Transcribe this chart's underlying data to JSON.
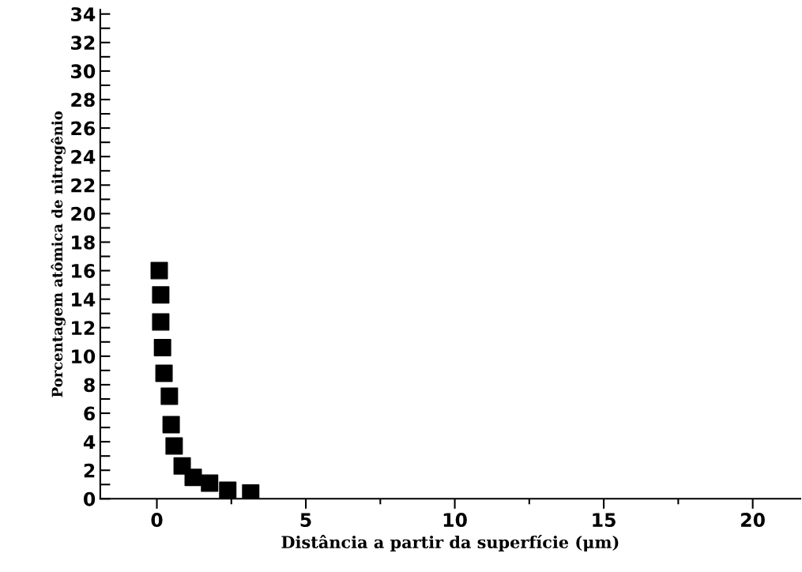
{
  "chart_data": {
    "type": "scatter",
    "xlabel": "Distância a partir da superfície (μm)",
    "ylabel": "Porcentagem atômica de nitrogênio",
    "x": [
      0.08,
      0.13,
      0.13,
      0.19,
      0.24,
      0.42,
      0.48,
      0.58,
      0.85,
      1.22,
      1.77,
      2.38,
      3.15
    ],
    "series": [
      {
        "color": "#000000",
        "values": [
          16.0,
          14.3,
          12.4,
          10.6,
          8.8,
          7.2,
          5.2,
          3.7,
          2.3,
          1.5,
          1.1,
          0.6,
          0.4
        ]
      }
    ],
    "marker": "square",
    "xlim": [
      -1.9,
      21.6
    ],
    "ylim": [
      0,
      34.3
    ],
    "xticks": [
      0,
      5,
      10,
      15,
      20
    ],
    "yticks": [
      0,
      2,
      4,
      6,
      8,
      10,
      12,
      14,
      16,
      18,
      20,
      22,
      24,
      26,
      28,
      30,
      32,
      34
    ],
    "grid": false,
    "legend": false
  }
}
